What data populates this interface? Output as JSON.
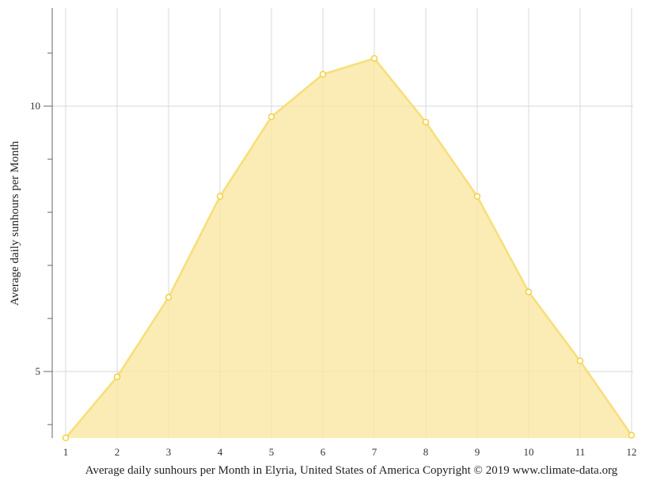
{
  "chart_data": {
    "type": "area",
    "title": "",
    "xlabel": "Average daily sunhours per Month in Elyria, United States of America Copyright © 2019 www.climate-data.org",
    "ylabel": "Average daily sunhours per Month",
    "categories": [
      "1",
      "2",
      "3",
      "4",
      "5",
      "6",
      "7",
      "8",
      "9",
      "10",
      "11",
      "12"
    ],
    "series": [
      {
        "name": "Average daily sunhours",
        "values": [
          3.75,
          4.9,
          6.4,
          8.3,
          9.8,
          10.6,
          10.9,
          9.7,
          8.3,
          6.5,
          5.2,
          3.8
        ],
        "color": "#f9e79f",
        "line_color": "#f7dc6f",
        "marker_color": "#f4d03f"
      }
    ],
    "ylim": [
      3.75,
      11.85
    ],
    "yticks_major": [
      5,
      10
    ],
    "yticks_minor": [
      4,
      6,
      7,
      8,
      9,
      11
    ],
    "grid": true,
    "legend": "none"
  }
}
